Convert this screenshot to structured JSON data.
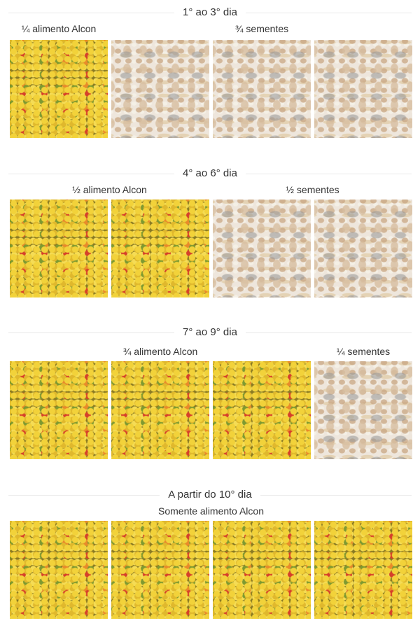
{
  "sections": [
    {
      "title": "1° ao 3° dia",
      "labels": [
        "¼ alimento Alcon",
        "¾ sementes"
      ],
      "tiles": [
        "pellets",
        "seeds",
        "seeds",
        "seeds"
      ]
    },
    {
      "title": "4° ao 6° dia",
      "labels": [
        "½ alimento Alcon",
        "½ sementes"
      ],
      "tiles": [
        "pellets",
        "pellets",
        "seeds",
        "seeds"
      ]
    },
    {
      "title": "7° ao 9° dia",
      "labels": [
        "¾ alimento Alcon",
        "¼ sementes"
      ],
      "tiles": [
        "pellets",
        "pellets",
        "pellets",
        "seeds"
      ]
    },
    {
      "title": "A partir do 10° dia",
      "labels": [
        "Somente alimento Alcon"
      ],
      "tiles": [
        "pellets",
        "pellets",
        "pellets",
        "pellets"
      ]
    }
  ],
  "colors": {
    "heading_text": "#333333",
    "divider": "#e8e8e8"
  }
}
